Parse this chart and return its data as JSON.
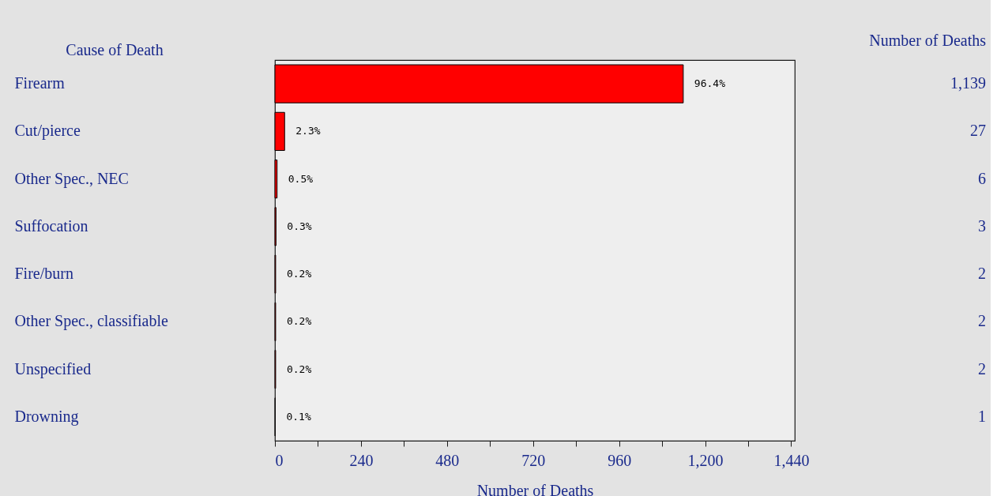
{
  "chart_data": {
    "type": "bar",
    "orientation": "horizontal",
    "ylabel": "Cause of Death",
    "y2label": "Number of Deaths",
    "xlabel": "Number of Deaths",
    "categories": [
      "Firearm",
      "Cut/pierce",
      "Other Spec., NEC",
      "Suffocation",
      "Fire/burn",
      "Other Spec., classifiable",
      "Unspecified",
      "Drowning"
    ],
    "values": [
      1139,
      27,
      6,
      3,
      2,
      2,
      2,
      1
    ],
    "color": "#ff0000",
    "value_labels": [
      "1,139",
      "27",
      "6",
      "3",
      "2",
      "2",
      "2",
      "1"
    ],
    "xlim": [
      0,
      1450
    ],
    "xticks": [
      0,
      {
        "value": 120,
        "label": null
      },
      240,
      {
        "value": 360,
        "label": null
      },
      480,
      {
        "value": 600,
        "label": null
      },
      720,
      {
        "value": 840,
        "label": null
      },
      960,
      {
        "value": 1080,
        "label": null
      },
      {
        "value": 1200,
        "label": "1,200"
      },
      {
        "value": 1320,
        "label": null
      },
      {
        "value": 1440,
        "label": "1,440"
      }
    ],
    "grid": false,
    "annotations": [
      {
        "text": "96.4%",
        "x": 1139,
        "y": "Firearm"
      },
      {
        "text": "2.3%",
        "x": 27,
        "y": "Cut/pierce"
      },
      {
        "text": "0.5%",
        "x": 6,
        "y": "Other Spec., NEC"
      },
      {
        "text": "0.3%",
        "x": 3,
        "y": "Suffocation"
      },
      {
        "text": "0.2%",
        "x": 2,
        "y": "Fire/burn"
      },
      {
        "text": "0.2%",
        "x": 2,
        "y": "Other Spec., classifiable"
      },
      {
        "text": "0.2%",
        "x": 2,
        "y": "Unspecified"
      },
      {
        "text": "0.1%",
        "x": 1,
        "y": "Drowning"
      }
    ]
  }
}
